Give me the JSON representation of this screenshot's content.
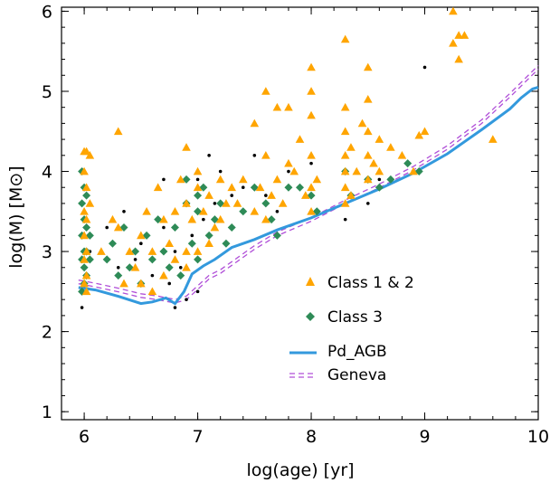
{
  "chart_data": {
    "type": "scatter",
    "title": "",
    "xlabel": "log(age) [yr]",
    "ylabel": "log(M) [M⊙]",
    "xlim": [
      5.8,
      10.0
    ],
    "ylim": [
      0.9,
      6.05
    ],
    "x_ticks": [
      "6",
      "7",
      "8",
      "9",
      "10"
    ],
    "y_ticks": [
      "1",
      "2",
      "3",
      "4",
      "5",
      "6"
    ],
    "legend_position": "bottom-right",
    "grid": false,
    "colors": {
      "class12": "#FFA500",
      "class3": "#2E8B57",
      "unclassified": "#000000",
      "pd_agb": "#3399DD",
      "geneva": "#B04FD8"
    },
    "series": [
      {
        "name": "Class 1 & 2",
        "marker": "triangle",
        "color": "#FFA500"
      },
      {
        "name": "Class 3",
        "marker": "diamond",
        "color": "#2E8B57"
      },
      {
        "name": "Pd_AGB",
        "marker": "line",
        "color": "#3399DD"
      },
      {
        "name": "Geneva",
        "marker": "dashed",
        "color": "#B04FD8"
      }
    ],
    "pd_agb_curve": {
      "x": [
        5.95,
        6.1,
        6.3,
        6.5,
        6.6,
        6.72,
        6.8,
        6.88,
        6.95,
        7.05,
        7.15,
        7.3,
        7.5,
        7.7,
        8.0,
        8.3,
        8.6,
        8.9,
        9.2,
        9.5,
        9.75,
        9.85,
        9.95,
        10.0
      ],
      "y": [
        2.55,
        2.52,
        2.44,
        2.35,
        2.37,
        2.42,
        2.35,
        2.5,
        2.72,
        2.82,
        2.9,
        3.05,
        3.15,
        3.27,
        3.42,
        3.6,
        3.78,
        3.98,
        4.22,
        4.52,
        4.78,
        4.92,
        5.03,
        5.05
      ]
    },
    "geneva_curve": {
      "x": [
        5.95,
        6.1,
        6.3,
        6.5,
        6.65,
        6.8,
        6.9,
        7.0,
        7.1,
        7.2,
        7.5,
        7.7,
        8.0,
        8.3,
        8.6,
        8.9,
        9.2,
        9.5,
        9.75,
        10.0
      ],
      "y": [
        2.62,
        2.58,
        2.52,
        2.45,
        2.42,
        2.38,
        2.42,
        2.55,
        2.68,
        2.75,
        3.05,
        3.22,
        3.4,
        3.62,
        3.82,
        4.04,
        4.3,
        4.62,
        4.95,
        5.3
      ]
    },
    "class12_points": {
      "x": [
        6.0,
        6.0,
        6.0,
        6.0,
        6.0,
        6.0,
        6.02,
        6.02,
        6.02,
        6.02,
        6.02,
        6.02,
        6.05,
        6.05,
        6.3,
        6.3,
        6.35,
        6.4,
        6.45,
        6.5,
        6.5,
        6.55,
        6.6,
        6.6,
        6.65,
        6.7,
        6.7,
        6.75,
        6.8,
        6.8,
        6.85,
        6.9,
        6.9,
        6.9,
        6.95,
        7.0,
        7.0,
        7.05,
        7.1,
        7.1,
        7.15,
        7.2,
        7.2,
        7.25,
        7.3,
        7.35,
        7.4,
        7.5,
        7.5,
        7.55,
        7.6,
        7.6,
        7.6,
        7.65,
        7.7,
        7.7,
        7.75,
        7.8,
        7.85,
        7.9,
        7.95,
        8.0,
        8.0,
        8.0,
        8.0,
        8.0,
        8.0,
        8.05,
        8.3,
        8.3,
        8.3,
        8.3,
        8.3,
        8.3,
        8.3,
        8.35,
        8.35,
        8.4,
        8.45,
        8.5,
        8.5,
        8.5,
        8.5,
        8.5,
        8.55,
        8.6,
        8.6,
        8.7,
        8.8,
        8.95,
        9.0,
        9.25,
        9.25,
        9.3,
        9.3,
        9.35,
        9.6,
        6.15,
        6.25,
        6.9,
        7.0,
        7.8,
        8.9
      ],
      "y": [
        4.25,
        4.0,
        3.5,
        3.2,
        2.9,
        2.6,
        4.25,
        3.8,
        3.4,
        3.0,
        2.7,
        2.5,
        4.2,
        3.6,
        4.5,
        3.3,
        2.6,
        3.0,
        2.8,
        3.2,
        2.6,
        3.5,
        3.0,
        2.5,
        3.8,
        3.4,
        2.7,
        3.1,
        3.5,
        2.9,
        3.9,
        4.3,
        3.6,
        3.0,
        3.4,
        3.8,
        3.0,
        3.5,
        3.7,
        3.1,
        3.3,
        3.9,
        3.4,
        3.6,
        3.8,
        3.6,
        3.9,
        4.6,
        3.5,
        3.8,
        5.0,
        4.2,
        3.4,
        3.7,
        4.8,
        3.9,
        3.6,
        4.1,
        4.0,
        4.4,
        3.7,
        5.3,
        5.0,
        4.7,
        4.2,
        3.8,
        3.5,
        3.9,
        5.65,
        4.8,
        4.5,
        4.2,
        4.0,
        3.8,
        3.6,
        4.3,
        3.7,
        4.0,
        4.6,
        5.3,
        4.9,
        4.5,
        4.2,
        3.9,
        4.1,
        4.4,
        4.0,
        4.3,
        4.2,
        4.45,
        4.5,
        6.0,
        5.6,
        5.4,
        5.7,
        5.7,
        4.4,
        3.0,
        3.4,
        2.8,
        4.0,
        4.8,
        4.0
      ]
    },
    "class3_points": {
      "x": [
        5.98,
        5.98,
        5.98,
        5.98,
        5.98,
        6.0,
        6.0,
        6.0,
        6.0,
        6.0,
        6.02,
        6.02,
        6.02,
        6.02,
        6.05,
        6.05,
        6.2,
        6.25,
        6.3,
        6.35,
        6.4,
        6.45,
        6.5,
        6.55,
        6.6,
        6.65,
        6.7,
        6.75,
        6.8,
        6.85,
        6.9,
        6.95,
        7.0,
        7.0,
        7.05,
        7.1,
        7.15,
        7.2,
        7.25,
        7.3,
        7.4,
        7.5,
        7.6,
        7.65,
        7.7,
        7.8,
        8.0,
        8.05,
        8.3,
        8.35,
        8.5,
        8.6,
        8.7,
        8.85,
        8.95,
        8.5,
        7.9,
        6.9,
        7.0
      ],
      "y": [
        4.0,
        3.6,
        3.2,
        2.9,
        2.5,
        3.8,
        3.4,
        3.0,
        2.8,
        2.6,
        3.7,
        3.3,
        3.0,
        2.7,
        3.2,
        2.9,
        2.9,
        3.1,
        2.7,
        3.3,
        2.8,
        3.0,
        2.6,
        3.2,
        2.9,
        3.4,
        3.0,
        2.8,
        3.3,
        2.7,
        3.6,
        3.1,
        3.5,
        2.9,
        3.8,
        3.2,
        3.4,
        3.6,
        3.1,
        3.3,
        3.5,
        3.8,
        3.6,
        3.4,
        3.2,
        3.8,
        3.7,
        3.5,
        4.0,
        3.7,
        3.9,
        3.8,
        3.9,
        4.1,
        4.0,
        3.9,
        3.8,
        3.9,
        3.7
      ]
    },
    "unclassified_points": {
      "x": [
        5.98,
        6.05,
        6.2,
        6.3,
        6.35,
        6.45,
        6.5,
        6.6,
        6.7,
        6.75,
        6.8,
        6.85,
        6.9,
        6.95,
        7.0,
        7.05,
        7.1,
        7.15,
        7.2,
        7.3,
        7.4,
        7.5,
        7.6,
        7.7,
        7.8,
        7.9,
        8.0,
        8.3,
        8.4,
        8.5,
        8.6,
        6.9,
        6.8,
        7.0,
        6.7,
        9.0
      ],
      "y": [
        2.3,
        3.0,
        3.3,
        2.8,
        3.5,
        2.9,
        3.1,
        2.7,
        3.3,
        2.6,
        3.0,
        2.8,
        3.6,
        3.2,
        3.9,
        3.4,
        4.2,
        3.6,
        4.0,
        3.7,
        3.8,
        4.2,
        3.7,
        3.5,
        4.0,
        3.8,
        4.1,
        3.4,
        4.0,
        3.6,
        3.9,
        2.4,
        2.3,
        2.5,
        3.9,
        5.3
      ]
    }
  }
}
